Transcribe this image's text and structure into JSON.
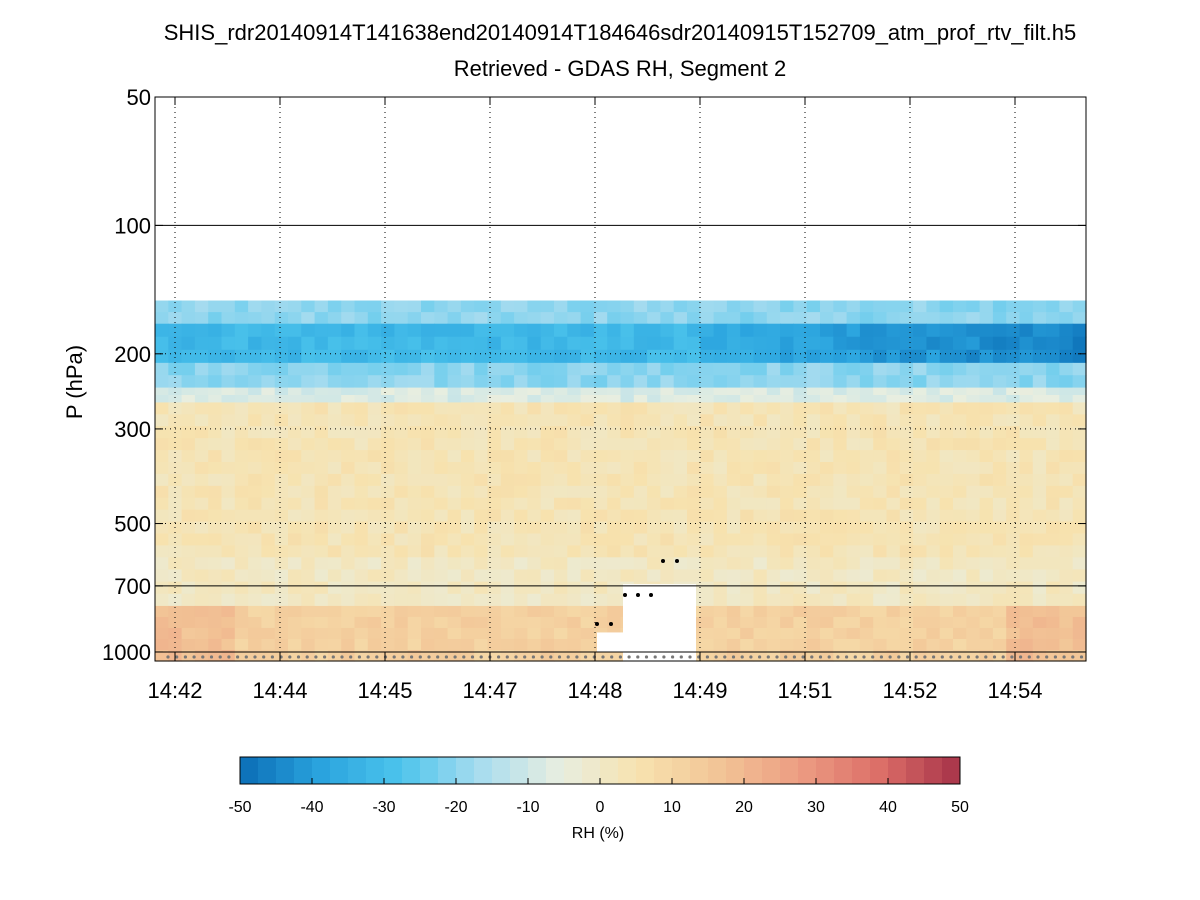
{
  "chart_data": {
    "type": "heatmap",
    "title": "SHIS_rdr20140914T141638end20140914T184646sdr20140915T152709_atm_prof_rtv_filt.h5",
    "subtitle": "Retrieved - GDAS RH, Segment 2",
    "ylabel": "P (hPa)",
    "x_ticks": [
      "14:42",
      "14:44",
      "14:45",
      "14:47",
      "14:48",
      "14:49",
      "14:51",
      "14:52",
      "14:54"
    ],
    "y_ticks": [
      50,
      100,
      200,
      300,
      500,
      700,
      1000
    ],
    "y_scale": "log",
    "ylim": [
      1050,
      50
    ],
    "grid": "dotted",
    "colorbar": {
      "label": "RH (%)",
      "range": [
        -50,
        50
      ],
      "ticks": [
        -50,
        -40,
        -30,
        -20,
        -10,
        0,
        10,
        20,
        30,
        40,
        50
      ],
      "colors": [
        "#0a6db5",
        "#2aa3de",
        "#4cc4ec",
        "#a8dcef",
        "#e8eee0",
        "#f7e2ae",
        "#f2c496",
        "#ec9c82",
        "#dc6e68",
        "#a63249"
      ]
    },
    "profile_bands": [
      {
        "p_top": 150,
        "p_bottom": 170,
        "rh": -20
      },
      {
        "p_top": 170,
        "p_bottom": 210,
        "rh": -32
      },
      {
        "p_top": 210,
        "p_bottom": 240,
        "rh": -20
      },
      {
        "p_top": 240,
        "p_bottom": 260,
        "rh": -8
      },
      {
        "p_top": 260,
        "p_bottom": 600,
        "rh": 4
      },
      {
        "p_top": 600,
        "p_bottom": 780,
        "rh": 1
      },
      {
        "p_top": 780,
        "p_bottom": 1050,
        "rh": 12
      }
    ],
    "missing_region": {
      "x_start": "14:48",
      "x_end": "14:49",
      "p_top": 650,
      "p_bottom": 1000
    }
  }
}
